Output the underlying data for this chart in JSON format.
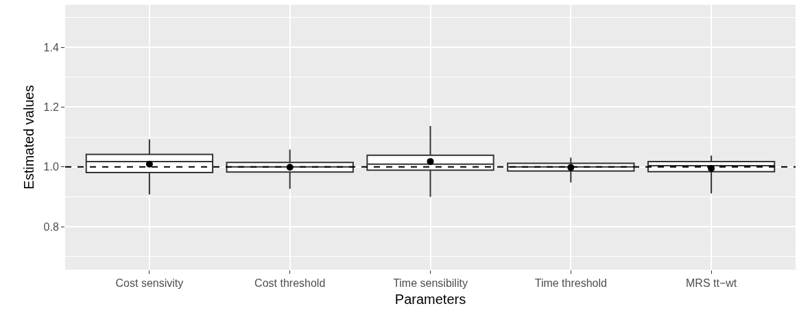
{
  "chart_data": {
    "type": "box",
    "xlabel": "Parameters",
    "ylabel": "Estimated values",
    "categories": [
      "Cost sensivity",
      "Cost threshold",
      "Time sensibility",
      "Time threshold",
      "MRS tt−wt"
    ],
    "boxes": [
      {
        "low": 0.908,
        "q1": 0.981,
        "median": 1.018,
        "q3": 1.042,
        "high": 1.092,
        "mean": 1.009
      },
      {
        "low": 0.927,
        "q1": 0.983,
        "median": 1.0,
        "q3": 1.015,
        "high": 1.058,
        "mean": 0.999
      },
      {
        "low": 0.9,
        "q1": 0.989,
        "median": 1.009,
        "q3": 1.039,
        "high": 1.137,
        "mean": 1.018
      },
      {
        "low": 0.948,
        "q1": 0.986,
        "median": 1.0,
        "q3": 1.012,
        "high": 1.031,
        "mean": 0.998
      },
      {
        "low": 0.911,
        "q1": 0.984,
        "median": 1.004,
        "q3": 1.018,
        "high": 1.038,
        "mean": 0.995
      }
    ],
    "color": "#333333",
    "ylim": [
      0.656,
      1.542
    ],
    "yticks": [
      {
        "value": 0.8,
        "label": "0.8"
      },
      {
        "value": 1.0,
        "label": "1.0"
      },
      {
        "value": 1.2,
        "label": "1.2"
      },
      {
        "value": 1.4,
        "label": "1.4"
      }
    ],
    "ref_lines": [
      {
        "axis": "y",
        "value": 1.0,
        "label": null,
        "color": "#000000",
        "line_style": "dashed"
      }
    ],
    "grid": true,
    "marker": "circle"
  }
}
